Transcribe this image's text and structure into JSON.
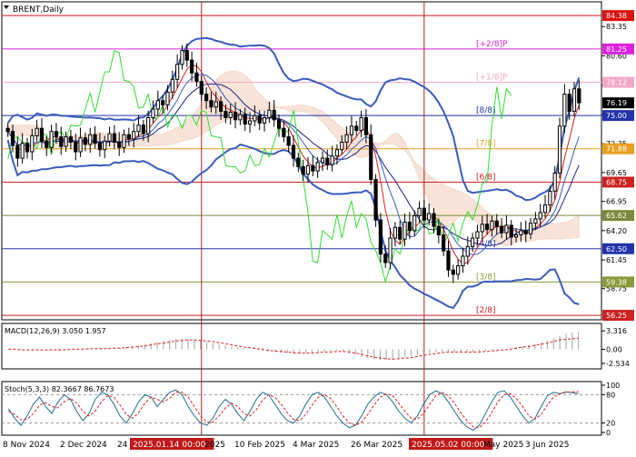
{
  "window": {
    "title": "BRENT,Daily"
  },
  "colors": {
    "candles": "#000000",
    "bollinger": "#3a5bbf",
    "ichimoku_lagging": "#33dd33",
    "ichimoku_cloud": "#e8b090",
    "ma_fast": "#dd2222",
    "ma_slow": "#202080",
    "macd_hist": "#b0b0b0",
    "macd_signal": "#dd2222",
    "stoch_main": "#1f6f8b",
    "stoch_signal": "#dd2222",
    "current_price_label": "#000000",
    "vertical_marker": "#b02020"
  },
  "chart_data": [
    {
      "type": "line",
      "title": "BRENT,Daily",
      "panel": "price",
      "yticks": [
        83.35,
        80.6,
        77.85,
        75.1,
        72.35,
        69.65,
        66.95,
        64.2,
        61.45,
        58.75
      ],
      "ylim": [
        56.0,
        85.5
      ],
      "xlabels": [
        "8 Nov 2024",
        "2 Dec 2024",
        "24",
        "2025.01.14 00:00",
        "2025",
        "10 Feb 2025",
        "4 Mar 2025",
        "26 Mar 2025",
        "2025.05.02 00:00",
        "May 2025",
        "3 Jun 2025"
      ],
      "murrey_levels": [
        {
          "value": 84.38,
          "label": "",
          "color": "#dd1111"
        },
        {
          "value": 81.25,
          "label": "[+2/8]P",
          "color": "#dd22dd"
        },
        {
          "value": 78.12,
          "label": "[+1/8]P",
          "color": "#f4a8c8"
        },
        {
          "value": 75.0,
          "label": "[8/8]",
          "color": "#2233aa"
        },
        {
          "value": 71.88,
          "label": "[7/8]",
          "color": "#e8a020"
        },
        {
          "value": 68.75,
          "label": "[6/8]",
          "color": "#cc2222"
        },
        {
          "value": 65.62,
          "label": "",
          "color": "#7a8a3a"
        },
        {
          "value": 62.5,
          "label": "[4/8]",
          "color": "#2233aa"
        },
        {
          "value": 59.38,
          "label": "[3/8]",
          "color": "#8a9a3a"
        },
        {
          "value": 56.25,
          "label": "[2/8]",
          "color": "#cc2222"
        }
      ],
      "current_price": 76.19,
      "series": [
        {
          "values": [
            73.5,
            72.2,
            71.0,
            72.4,
            71.6,
            73.1,
            73.8,
            72.6,
            72.0,
            73.5,
            73.0,
            72.1,
            73.0,
            72.5,
            71.6,
            72.9,
            72.3,
            73.2,
            72.4,
            71.8,
            72.6,
            73.3,
            72.5,
            72.0,
            73.2,
            72.8,
            73.5,
            74.1,
            73.3,
            74.8,
            75.6,
            76.4,
            76.0,
            77.2,
            78.4,
            79.8,
            81.1,
            80.2,
            79.0,
            78.2,
            77.0,
            76.4,
            75.8,
            76.3,
            75.4,
            74.8,
            75.3,
            74.6,
            75.1,
            74.2,
            74.5,
            75.0,
            74.3,
            74.8,
            75.5,
            74.6,
            73.8,
            73.0,
            72.2,
            71.0,
            70.2,
            69.5,
            70.3,
            69.8,
            70.6,
            71.0,
            70.4,
            71.2,
            71.8,
            72.5,
            73.2,
            74.0,
            73.6,
            74.8,
            73.2,
            69.0,
            65.2,
            62.0,
            61.2,
            63.5,
            64.5,
            63.4,
            65.0,
            64.2,
            65.6,
            66.3,
            65.2,
            65.8,
            64.6,
            63.8,
            62.3,
            60.5,
            60.1,
            60.9,
            61.8,
            62.7,
            63.5,
            64.1,
            64.8,
            64.3,
            65.1,
            64.6,
            64.0,
            64.7,
            63.6,
            63.8,
            64.2,
            63.9,
            64.9,
            65.3,
            65.9,
            66.6,
            67.9,
            69.6,
            74.0,
            77.0,
            75.4,
            77.5,
            76.19
          ]
        }
      ]
    },
    {
      "type": "bar",
      "title": "MACD(12,26,9) 3.050 1.957",
      "panel": "macd",
      "yticks": [
        3.316,
        0.0,
        -2.534
      ],
      "ylim": [
        -3.2,
        4.0
      ],
      "series": [
        {
          "name": "MACD",
          "values": [
            0.1,
            0.0,
            -0.1,
            -0.1,
            -0.2,
            -0.1,
            0.0,
            -0.1,
            -0.2,
            -0.1,
            0.0,
            0.0,
            0.1,
            0.1,
            0.0,
            0.1,
            0.2,
            0.2,
            0.3,
            0.4,
            0.5,
            0.7,
            0.9,
            1.1,
            1.3,
            1.5,
            1.7,
            1.9,
            1.9,
            1.8,
            1.7,
            1.5,
            1.3,
            1.1,
            0.9,
            0.7,
            0.5,
            0.3,
            0.2,
            0.0,
            -0.1,
            -0.3,
            -0.4,
            -0.5,
            -0.6,
            -0.7,
            -0.8,
            -0.8,
            -0.7,
            -0.6,
            -0.5,
            -0.4,
            -0.3,
            -0.3,
            -0.4,
            -0.7,
            -1.0,
            -1.3,
            -1.6,
            -1.8,
            -1.9,
            -1.9,
            -1.8,
            -1.6,
            -1.4,
            -1.2,
            -1.0,
            -0.8,
            -0.6,
            -0.5,
            -0.4,
            -0.4,
            -0.5,
            -0.6,
            -0.6,
            -0.5,
            -0.4,
            -0.3,
            -0.2,
            -0.1,
            0.0,
            0.2,
            0.4,
            0.6,
            0.8,
            1.0,
            1.3,
            1.6,
            2.0,
            2.4,
            2.8,
            3.0,
            3.05
          ]
        },
        {
          "name": "Signal",
          "values": [
            0.0,
            0.0,
            -0.1,
            -0.1,
            -0.1,
            -0.1,
            -0.1,
            -0.1,
            -0.1,
            -0.1,
            0.0,
            0.0,
            0.0,
            0.1,
            0.1,
            0.1,
            0.1,
            0.2,
            0.2,
            0.3,
            0.4,
            0.5,
            0.6,
            0.8,
            1.0,
            1.1,
            1.3,
            1.5,
            1.6,
            1.7,
            1.7,
            1.6,
            1.5,
            1.4,
            1.2,
            1.0,
            0.8,
            0.6,
            0.4,
            0.3,
            0.1,
            0.0,
            -0.2,
            -0.3,
            -0.4,
            -0.5,
            -0.6,
            -0.7,
            -0.7,
            -0.7,
            -0.6,
            -0.5,
            -0.5,
            -0.4,
            -0.4,
            -0.5,
            -0.7,
            -0.9,
            -1.2,
            -1.4,
            -1.6,
            -1.7,
            -1.8,
            -1.7,
            -1.6,
            -1.5,
            -1.3,
            -1.1,
            -0.9,
            -0.8,
            -0.6,
            -0.5,
            -0.5,
            -0.5,
            -0.5,
            -0.5,
            -0.5,
            -0.4,
            -0.3,
            -0.2,
            -0.1,
            0.0,
            0.2,
            0.4,
            0.5,
            0.7,
            0.9,
            1.1,
            1.4,
            1.7,
            1.8,
            1.9,
            1.957
          ]
        }
      ]
    },
    {
      "type": "line",
      "title": "Stoch(5,3,3) 82.3667 86.7673",
      "panel": "stochastic",
      "yticks": [
        100,
        80,
        20,
        0
      ],
      "ylim": [
        0,
        100
      ],
      "series": [
        {
          "name": "%K",
          "values": [
            50,
            30,
            15,
            35,
            60,
            75,
            55,
            40,
            65,
            80,
            70,
            45,
            25,
            40,
            70,
            85,
            80,
            60,
            35,
            20,
            40,
            65,
            80,
            75,
            55,
            70,
            85,
            90,
            80,
            55,
            35,
            20,
            15,
            30,
            55,
            70,
            60,
            40,
            25,
            45,
            70,
            85,
            80,
            60,
            40,
            25,
            20,
            35,
            60,
            80,
            85,
            75,
            55,
            35,
            20,
            10,
            15,
            35,
            60,
            75,
            85,
            80,
            65,
            45,
            30,
            20,
            35,
            60,
            80,
            88,
            82,
            65,
            45,
            25,
            12,
            5,
            15,
            40,
            65,
            85,
            88,
            75,
            55,
            35,
            20,
            30,
            55,
            78,
            85,
            82,
            86,
            84,
            82.37
          ]
        },
        {
          "name": "%D",
          "values": [
            45,
            38,
            27,
            28,
            40,
            58,
            63,
            55,
            52,
            65,
            72,
            62,
            45,
            35,
            45,
            65,
            78,
            75,
            58,
            38,
            30,
            42,
            62,
            75,
            70,
            65,
            72,
            85,
            85,
            75,
            55,
            35,
            22,
            22,
            35,
            52,
            62,
            55,
            40,
            35,
            48,
            68,
            80,
            75,
            60,
            42,
            28,
            25,
            38,
            58,
            75,
            80,
            72,
            55,
            35,
            20,
            15,
            22,
            38,
            58,
            75,
            82,
            78,
            62,
            45,
            30,
            28,
            40,
            60,
            78,
            85,
            78,
            62,
            42,
            25,
            12,
            10,
            22,
            42,
            65,
            80,
            82,
            72,
            55,
            35,
            28,
            38,
            58,
            75,
            82,
            85,
            86,
            86.77
          ]
        }
      ]
    }
  ]
}
